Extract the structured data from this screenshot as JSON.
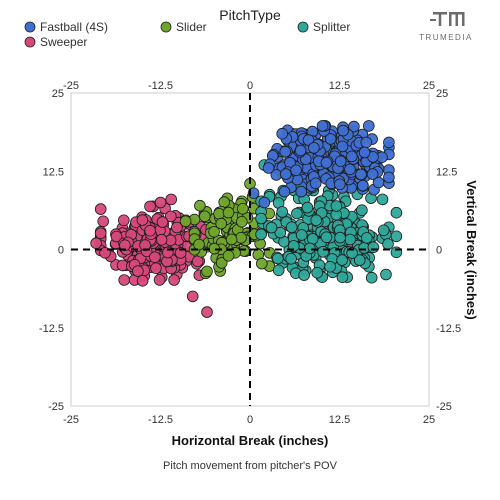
{
  "branding": {
    "logo_text": "TRUMEDIA"
  },
  "chart_data": {
    "type": "scatter",
    "legend_title": "PitchType",
    "legend_placement": "top",
    "xlabel": "Horizontal Break (inches)",
    "ylabel": "Vertical Break (inches)",
    "caption": "Pitch movement from pitcher's POV",
    "xlim": [
      -25,
      25
    ],
    "ylim": [
      -25,
      25
    ],
    "xticks": [
      "-25",
      "-12.5",
      "0",
      "12.5",
      "25"
    ],
    "yticks": [
      "25",
      "12.5",
      "0",
      "-12.5",
      "-25"
    ],
    "reference_lines": {
      "x": 0,
      "y": 0,
      "style": "dashed"
    },
    "series": [
      {
        "name": "Fastball (4S)",
        "color": "#3f6fd1",
        "center": [
          11,
          14.5
        ],
        "spread": [
          4,
          2.5
        ],
        "count": 260,
        "points": [
          [
            0.5,
            9
          ],
          [
            2,
            7.5
          ],
          [
            15.5,
            12
          ],
          [
            16,
            15.5
          ],
          [
            4.5,
            18.5
          ],
          [
            13,
            19
          ]
        ]
      },
      {
        "name": "Slider",
        "color": "#6fa52a",
        "center": [
          -2.5,
          2.5
        ],
        "spread": [
          2.5,
          3
        ],
        "count": 110,
        "points": [
          [
            -6,
            -3.5
          ],
          [
            -7,
            7
          ],
          [
            -9,
            4.5
          ],
          [
            0,
            10.5
          ],
          [
            -1,
            6.5
          ],
          [
            -3,
            -1
          ]
        ]
      },
      {
        "name": "Splitter",
        "color": "#2ea89a",
        "center": [
          11,
          2.5
        ],
        "spread": [
          4.5,
          3.3
        ],
        "count": 260,
        "points": [
          [
            2,
            13.5
          ],
          [
            18.5,
            8
          ],
          [
            19,
            -4
          ],
          [
            3,
            3.5
          ],
          [
            17,
            -4.5
          ],
          [
            4.5,
            6
          ]
        ]
      },
      {
        "name": "Sweeper",
        "color": "#d6497a",
        "center": [
          -13.5,
          1
        ],
        "spread": [
          3.5,
          2.8
        ],
        "count": 230,
        "points": [
          [
            -8,
            -7.5
          ],
          [
            -6,
            -10
          ],
          [
            -12.5,
            7.5
          ],
          [
            -20.5,
            4.5
          ],
          [
            -21.5,
            1
          ],
          [
            -11,
            8
          ],
          [
            -15,
            -5
          ]
        ]
      }
    ]
  }
}
